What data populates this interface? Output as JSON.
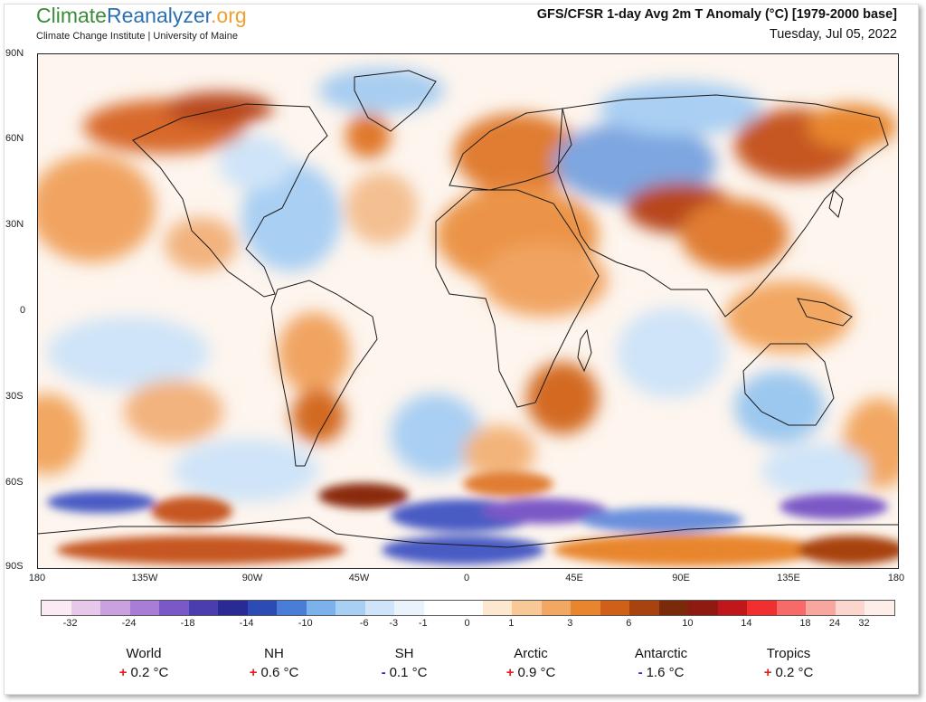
{
  "header": {
    "logo_climate": "Climate",
    "logo_reanalyzer": "Reanalyzer",
    "logo_org": ".org",
    "sublogo": "Climate Change Institute | University of Maine",
    "title": "GFS/CFSR 1-day Avg 2m T Anomaly (°C) [1979-2000 base]",
    "date": "Tuesday, Jul 05, 2022"
  },
  "map": {
    "lat_labels": [
      "90N",
      "60N",
      "30N",
      "0",
      "30S",
      "60S",
      "90S"
    ],
    "lon_labels": [
      "180",
      "135W",
      "90W",
      "45W",
      "0",
      "45E",
      "90E",
      "135E",
      "180"
    ],
    "colors": {
      "warm": "#e8893b",
      "hot": "#b4441a",
      "cool": "#9cc8ef",
      "cold": "#4a5bc4",
      "neutral": "#fdf6ef",
      "coast": "#1a1a1a"
    }
  },
  "colorbar": {
    "labels": [
      "-32",
      "-24",
      "-18",
      "-14",
      "-10",
      "-6",
      "-3",
      "-1",
      "0",
      "1",
      "3",
      "6",
      "10",
      "14",
      "18",
      "24",
      "32"
    ],
    "colors": [
      "#fbe9f3",
      "#e8c8ea",
      "#c9a0e0",
      "#a87dd6",
      "#7a58c6",
      "#4b3db0",
      "#2a2a95",
      "#2c4bb5",
      "#4a7ed6",
      "#7cb1ec",
      "#a9cff3",
      "#cfe4f8",
      "#eaf3fc",
      "#ffffff",
      "#ffffff",
      "#fde7cf",
      "#f8c896",
      "#f2a762",
      "#e8862f",
      "#cf6019",
      "#a8420f",
      "#7a2a0a",
      "#8e1a10",
      "#c0181a",
      "#f03030",
      "#f76a6a",
      "#f7a6a0",
      "#fbd6cf",
      "#fdeeea"
    ]
  },
  "stats": [
    {
      "name": "World",
      "sign": "+",
      "value": "0.2 °C"
    },
    {
      "name": "NH",
      "sign": "+",
      "value": "0.6 °C"
    },
    {
      "name": "SH",
      "sign": "-",
      "value": "0.1 °C"
    },
    {
      "name": "Arctic",
      "sign": "+",
      "value": "0.9 °C"
    },
    {
      "name": "Antarctic",
      "sign": "-",
      "value": "1.6 °C"
    },
    {
      "name": "Tropics",
      "sign": "+",
      "value": "0.2 °C"
    }
  ]
}
